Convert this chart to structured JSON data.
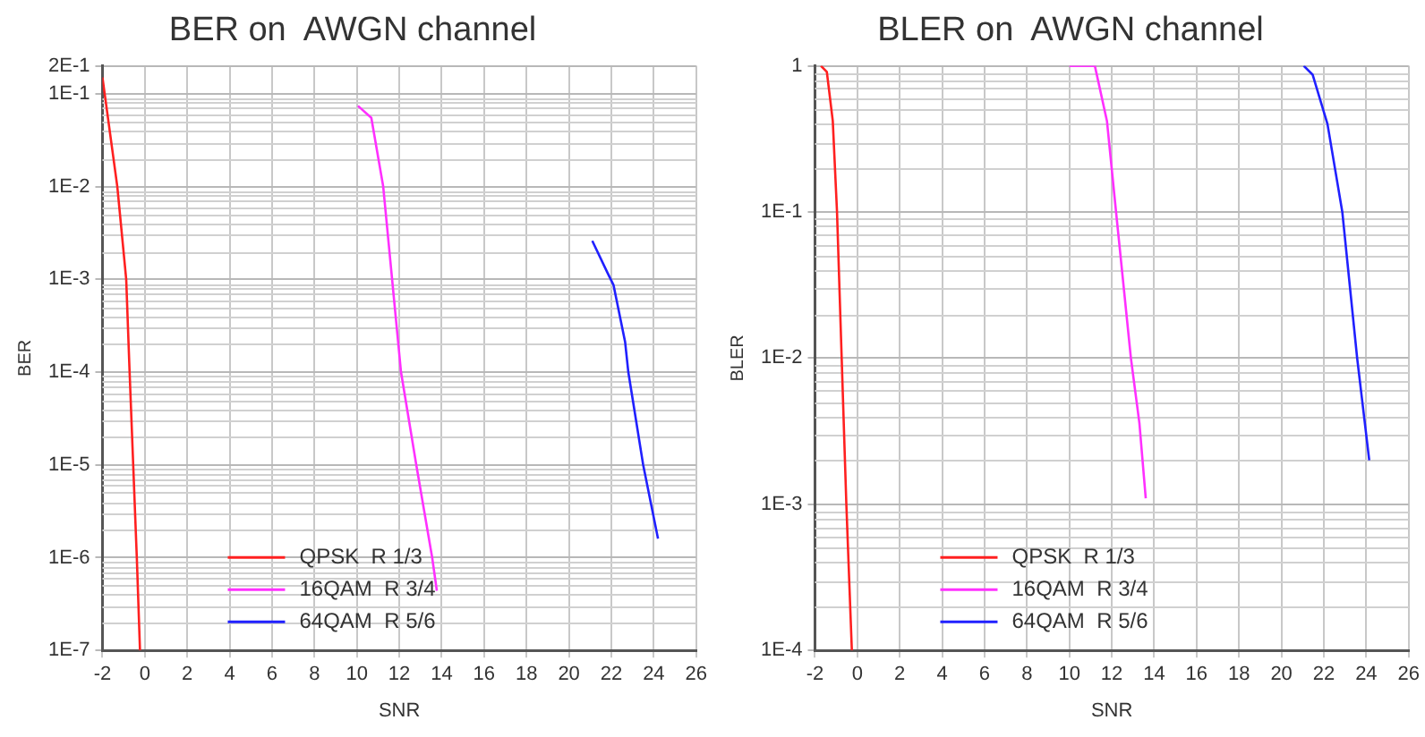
{
  "chart_data": [
    {
      "type": "line",
      "title": "BER on  AWGN channel",
      "xlabel": "SNR",
      "ylabel": "BER",
      "log": true,
      "grid": true,
      "legend": "bottom left",
      "xlim": [
        -2,
        26
      ],
      "xticks": [
        -2,
        0,
        2,
        4,
        6,
        8,
        10,
        12,
        14,
        16,
        18,
        20,
        22,
        24,
        26
      ],
      "ylim": [
        1e-07,
        0.2
      ],
      "yticks": [
        {
          "value": 1e-07,
          "label": "1E-7"
        },
        {
          "value": 1e-06,
          "label": "1E-6"
        },
        {
          "value": 1e-05,
          "label": "1E-5"
        },
        {
          "value": 0.0001,
          "label": "1E-4"
        },
        {
          "value": 0.001,
          "label": "1E-3"
        },
        {
          "value": 0.01,
          "label": "1E-2"
        },
        {
          "value": 0.1,
          "label": "1E-1"
        },
        {
          "value": 0.2,
          "label": "2E-1"
        }
      ],
      "series": [
        {
          "name": "QPSK  R 1/3",
          "color": "#ff2020",
          "x": [
            -2,
            -1.3,
            -0.88,
            -0.72,
            -0.55,
            -0.38,
            -0.23
          ],
          "values": [
            0.15,
            0.01,
            0.001,
            0.0001,
            1e-05,
            1e-06,
            1e-07
          ]
        },
        {
          "name": "16QAM  R 3/4",
          "color": "#ff30ff",
          "x": [
            10.05,
            10.68,
            11.24,
            11.66,
            12.08,
            12.8,
            13.55,
            13.77
          ],
          "values": [
            0.074,
            0.055,
            0.01,
            0.001,
            0.0001,
            1e-05,
            1e-06,
            4.4e-07
          ]
        },
        {
          "name": "64QAM  R 5/6",
          "color": "#2020ff",
          "x": [
            21.1,
            21.8,
            22.1,
            22.65,
            22.8,
            23.5,
            24.2
          ],
          "values": [
            0.0026,
            0.0012,
            0.00087,
            0.00021,
            0.0001,
            1e-05,
            1.6e-06
          ]
        }
      ]
    },
    {
      "type": "line",
      "title": "BLER on  AWGN channel",
      "xlabel": "SNR",
      "ylabel": "BLER",
      "log": true,
      "grid": true,
      "legend": "bottom left",
      "xlim": [
        -2,
        26
      ],
      "xticks": [
        -2,
        0,
        2,
        4,
        6,
        8,
        10,
        12,
        14,
        16,
        18,
        20,
        22,
        24,
        26
      ],
      "ylim": [
        0.0001,
        1
      ],
      "yticks": [
        {
          "value": 0.0001,
          "label": "1E-4"
        },
        {
          "value": 0.001,
          "label": "1E-3"
        },
        {
          "value": 0.01,
          "label": "1E-2"
        },
        {
          "value": 0.1,
          "label": "1E-1"
        },
        1
      ],
      "series": [
        {
          "name": "QPSK  R 1/3",
          "color": "#ff2020",
          "x": [
            -1.72,
            -1.44,
            -1.16,
            -0.96,
            -0.74,
            -0.52,
            -0.26
          ],
          "values": [
            1,
            0.91,
            0.42,
            0.1,
            0.01,
            0.001,
            0.0001
          ]
        },
        {
          "name": "16QAM  R 3/4",
          "color": "#ff30ff",
          "x": [
            10.0,
            11.2,
            11.77,
            12.2,
            12.9,
            13.3,
            13.6
          ],
          "values": [
            1,
            1,
            0.42,
            0.1,
            0.01,
            0.0036,
            0.0011
          ]
        },
        {
          "name": "64QAM  R 5/6",
          "color": "#2020ff",
          "x": [
            21.05,
            21.47,
            22.17,
            22.87,
            23.57,
            24.14
          ],
          "values": [
            1,
            0.87,
            0.4,
            0.1,
            0.01,
            0.002
          ]
        }
      ]
    }
  ]
}
